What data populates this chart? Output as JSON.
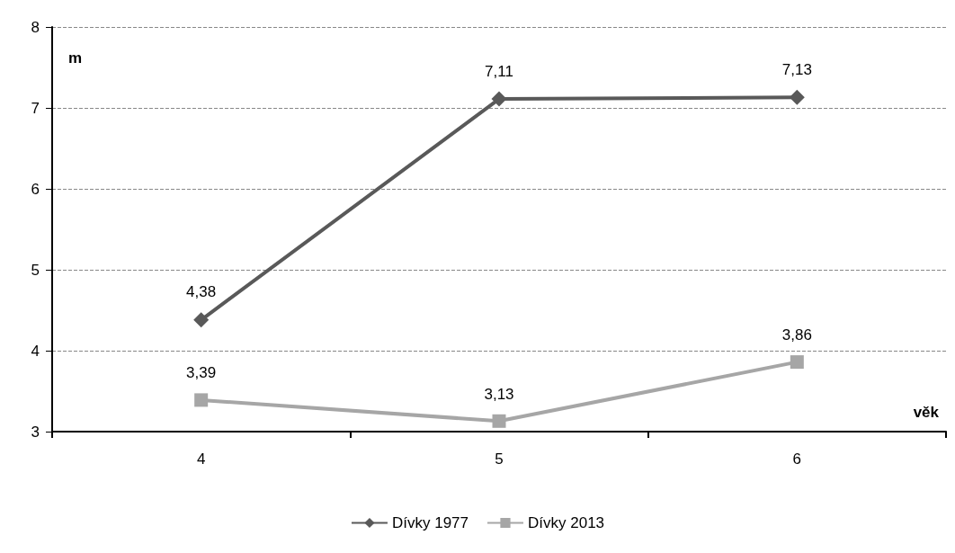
{
  "chart_data": {
    "type": "line",
    "xlabel": "věk",
    "ylabel": "m",
    "categories": [
      "4",
      "5",
      "6"
    ],
    "series": [
      {
        "name": "Dívky 1977",
        "color": "#595959",
        "marker": "diamond",
        "values": [
          4.38,
          7.11,
          7.13
        ],
        "value_labels": [
          "4,38",
          "7,11",
          "7,13"
        ]
      },
      {
        "name": "Dívky 2013",
        "color": "#a6a6a6",
        "marker": "square",
        "values": [
          3.39,
          3.13,
          3.86
        ],
        "value_labels": [
          "3,39",
          "3,13",
          "3,86"
        ]
      }
    ],
    "ylim": [
      3,
      8
    ],
    "yticks": [
      3,
      4,
      5,
      6,
      7,
      8
    ],
    "grid": "y",
    "legend": "bottom"
  }
}
